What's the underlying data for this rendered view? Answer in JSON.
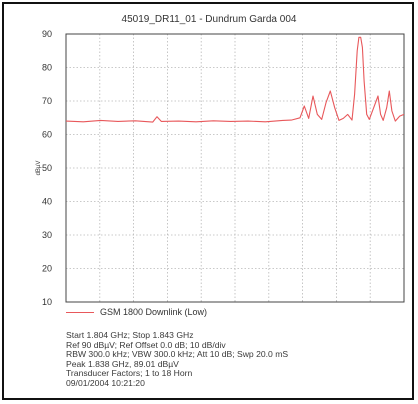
{
  "chart_data": {
    "type": "line",
    "title": "45019_DR11_01 - Dundrum Garda 004",
    "xlabel": "",
    "ylabel": "dBµV",
    "ylim": [
      10,
      90
    ],
    "yticks": [
      10,
      20,
      30,
      40,
      50,
      60,
      70,
      80,
      90
    ],
    "xlim": [
      1.804,
      1.843
    ],
    "grid": true,
    "grid_style": "dotted",
    "legend_position": "bottom-left",
    "series": [
      {
        "name": "GSM 1800 Downlink (Low)",
        "color": "#e8585b",
        "x": [
          1.804,
          1.806,
          1.808,
          1.81,
          1.812,
          1.814,
          1.8145,
          1.815,
          1.817,
          1.819,
          1.821,
          1.823,
          1.825,
          1.827,
          1.829,
          1.83,
          1.831,
          1.8315,
          1.832,
          1.8325,
          1.833,
          1.8335,
          1.834,
          1.8345,
          1.835,
          1.8355,
          1.836,
          1.8365,
          1.837,
          1.8373,
          1.8376,
          1.8378,
          1.838,
          1.8382,
          1.8384,
          1.8387,
          1.839,
          1.8395,
          1.84,
          1.8403,
          1.8406,
          1.841,
          1.8413,
          1.8416,
          1.842,
          1.8425,
          1.843
        ],
        "y": [
          64.0,
          63.8,
          64.2,
          63.9,
          64.1,
          63.7,
          65.3,
          63.9,
          64.0,
          63.8,
          64.1,
          63.9,
          64.0,
          63.8,
          64.2,
          64.3,
          65.0,
          68.5,
          64.8,
          71.5,
          66.0,
          64.5,
          69.5,
          73.0,
          68.0,
          64.2,
          64.8,
          66.0,
          64.3,
          72.0,
          85.0,
          89.0,
          89.01,
          86.0,
          76.0,
          66.0,
          64.5,
          68.0,
          71.5,
          66.0,
          64.2,
          68.0,
          73.0,
          67.0,
          64.0,
          65.5,
          66.0
        ]
      }
    ]
  },
  "footer": {
    "lines": [
      "Start 1.804 GHz; Stop 1.843 GHz",
      "Ref 90 dBµV; Ref Offset 0.0 dB; 10 dB/div",
      "RBW 300.0 kHz; VBW 300.0 kHz; Att 10 dB; Swp 20.0 mS",
      "Peak 1.838 GHz, 89.01 dBµV",
      "Transducer Factors; 1 to 18 Horn",
      "09/01/2004 10:21:20"
    ]
  }
}
